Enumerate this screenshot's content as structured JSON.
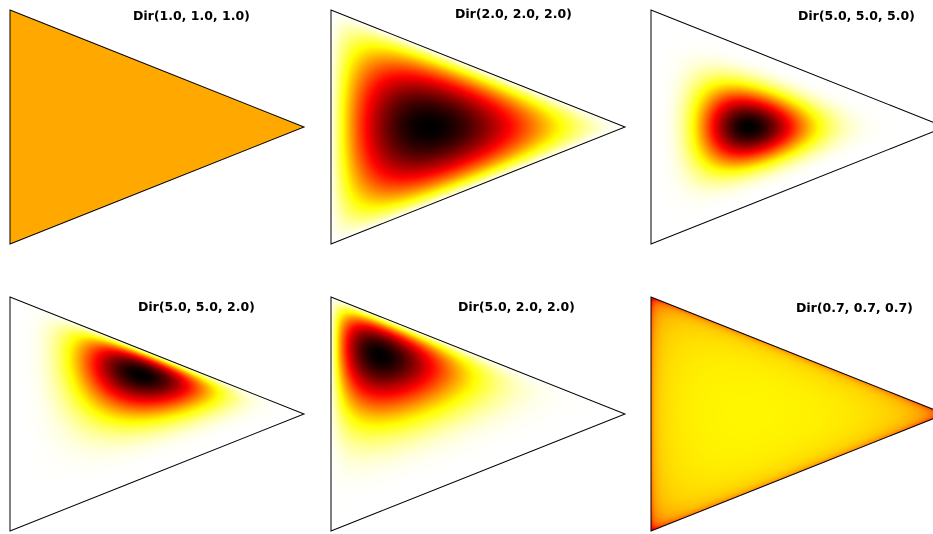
{
  "chart_data": [
    {
      "type": "heatmap",
      "title": "Dir(1.0, 1.0, 1.0)",
      "alpha": [
        1.0,
        1.0,
        1.0
      ]
    },
    {
      "type": "heatmap",
      "title": "Dir(2.0, 2.0, 2.0)",
      "alpha": [
        2.0,
        2.0,
        2.0
      ]
    },
    {
      "type": "heatmap",
      "title": "Dir(5.0, 5.0, 5.0)",
      "alpha": [
        5.0,
        5.0,
        5.0
      ]
    },
    {
      "type": "heatmap",
      "title": "Dir(5.0, 5.0, 2.0)",
      "alpha": [
        5.0,
        5.0,
        2.0
      ]
    },
    {
      "type": "heatmap",
      "title": "Dir(5.0, 2.0, 2.0)",
      "alpha": [
        5.0,
        2.0,
        2.0
      ]
    },
    {
      "type": "heatmap",
      "title": "Dir(0.7, 0.7, 0.7)",
      "alpha": [
        0.7,
        0.7,
        0.7
      ]
    }
  ],
  "colormap": "hot_r"
}
